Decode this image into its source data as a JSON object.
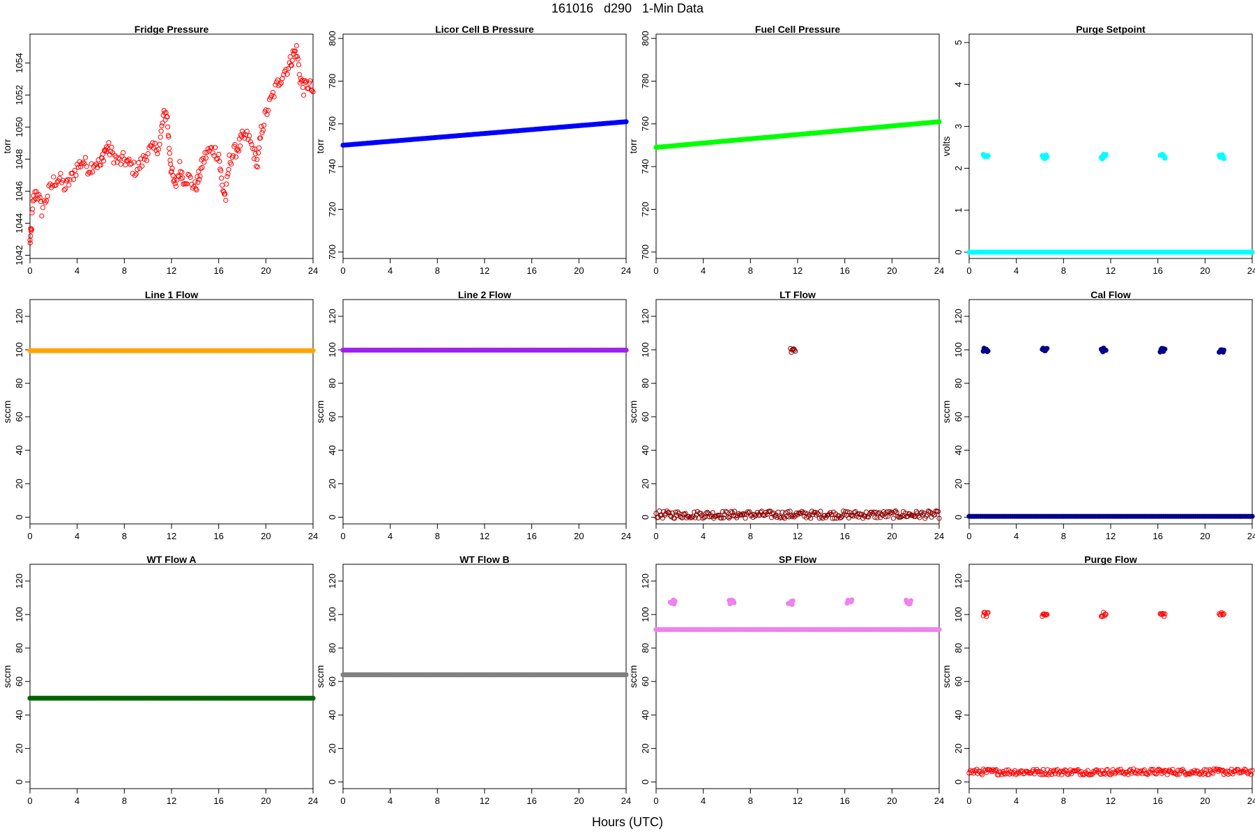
{
  "page": {
    "title": "161016   d290   1-Min Data",
    "xlabel": "Hours (UTC)"
  },
  "chart_data": [
    {
      "type": "scatter",
      "title": "Fridge Pressure",
      "ylabel": "torr",
      "xlim": [
        0,
        24
      ],
      "ylim": [
        1041.8,
        1055.8
      ],
      "xticks": [
        0,
        4,
        8,
        12,
        16,
        20,
        24
      ],
      "yticks": [
        1042,
        1044,
        1046,
        1048,
        1050,
        1052,
        1054
      ],
      "color": "#ff0000",
      "marker": "open",
      "series": [
        {
          "x": [
            0,
            0.1,
            0.3,
            0.6,
            1,
            1.5,
            2,
            2.5,
            3,
            3.5,
            4,
            4.5,
            5,
            5.5,
            6,
            6.3,
            6.6,
            7,
            7.5,
            8,
            8.5,
            9,
            9.5,
            10,
            10.5,
            11,
            11.3,
            11.6,
            11.8,
            12,
            12.3,
            12.7,
            13,
            13.5,
            14,
            14.3,
            14.6,
            15,
            15.5,
            16,
            16.3,
            16.6,
            16.9,
            17.3,
            17.7,
            18,
            18.5,
            19,
            19.3,
            19.6,
            20,
            20.5,
            21,
            21.5,
            22,
            22.3,
            22.6,
            22.9,
            23.2,
            23.6,
            24
          ],
          "y": [
            1042.8,
            1043.5,
            1045.5,
            1046,
            1044.8,
            1045.8,
            1046.6,
            1046.8,
            1046.2,
            1046.8,
            1047.5,
            1047.9,
            1047.4,
            1047.8,
            1047.6,
            1048.5,
            1048.7,
            1048.3,
            1047.8,
            1048,
            1047.6,
            1047.3,
            1047.8,
            1048.5,
            1048.6,
            1048.9,
            1050.6,
            1050.9,
            1048.8,
            1047.2,
            1046.2,
            1047.5,
            1046.8,
            1046.8,
            1046.2,
            1046.8,
            1047.7,
            1048.4,
            1048.6,
            1048.3,
            1046.3,
            1045.6,
            1047.9,
            1048.4,
            1048.8,
            1049.3,
            1049.4,
            1048.4,
            1047.7,
            1049.7,
            1050.8,
            1051.8,
            1052.7,
            1053.4,
            1053.9,
            1054.5,
            1054.8,
            1053.1,
            1052.4,
            1052.7,
            1052.2
          ]
        }
      ]
    },
    {
      "type": "scatter",
      "title": "Licor Cell B Pressure",
      "ylabel": "torr",
      "xlim": [
        0,
        24
      ],
      "ylim": [
        697,
        802
      ],
      "xticks": [
        0,
        4,
        8,
        12,
        16,
        20,
        24
      ],
      "yticks": [
        700,
        720,
        740,
        760,
        780,
        800
      ],
      "color": "#0000ff",
      "marker": "filled",
      "series": [
        {
          "x": [
            0,
            24
          ],
          "y": [
            750,
            761
          ]
        }
      ]
    },
    {
      "type": "scatter",
      "title": "Fuel Cell Pressure",
      "ylabel": "torr",
      "xlim": [
        0,
        24
      ],
      "ylim": [
        697,
        802
      ],
      "xticks": [
        0,
        4,
        8,
        12,
        16,
        20,
        24
      ],
      "yticks": [
        700,
        720,
        740,
        760,
        780,
        800
      ],
      "color": "#00ff00",
      "marker": "filled",
      "series": [
        {
          "x": [
            0,
            24
          ],
          "y": [
            749,
            761
          ]
        }
      ]
    },
    {
      "type": "scatter",
      "title": "Purge Setpoint",
      "ylabel": "volts",
      "xlim": [
        0,
        24
      ],
      "ylim": [
        -0.15,
        5.2
      ],
      "xticks": [
        0,
        4,
        8,
        12,
        16,
        20,
        24
      ],
      "yticks": [
        0,
        1,
        2,
        3,
        4,
        5
      ],
      "color": "#00ffff",
      "marker": "filled",
      "baseline": {
        "x": [
          0,
          24
        ],
        "y": 0
      },
      "clusters": [
        {
          "x": [
            1.2,
            1.6
          ],
          "y": 2.28
        },
        {
          "x": [
            6.2,
            6.6
          ],
          "y": 2.28
        },
        {
          "x": [
            11.2,
            11.6
          ],
          "y": 2.28
        },
        {
          "x": [
            16.2,
            16.6
          ],
          "y": 2.28
        },
        {
          "x": [
            21.2,
            21.6
          ],
          "y": 2.28
        }
      ]
    },
    {
      "type": "scatter",
      "title": "Line 1 Flow",
      "ylabel": "sccm",
      "xlim": [
        0,
        24
      ],
      "ylim": [
        -4,
        130
      ],
      "xticks": [
        0,
        4,
        8,
        12,
        16,
        20,
        24
      ],
      "yticks": [
        0,
        20,
        40,
        60,
        80,
        100,
        120
      ],
      "color": "#ffa500",
      "marker": "filled",
      "series": [
        {
          "x": [
            0,
            24
          ],
          "y": [
            99.5,
            99.5
          ]
        }
      ]
    },
    {
      "type": "scatter",
      "title": "Line 2 Flow",
      "ylabel": "sccm",
      "xlim": [
        0,
        24
      ],
      "ylim": [
        -4,
        130
      ],
      "xticks": [
        0,
        4,
        8,
        12,
        16,
        20,
        24
      ],
      "yticks": [
        0,
        20,
        40,
        60,
        80,
        100,
        120
      ],
      "color": "#a020f0",
      "marker": "filled",
      "series": [
        {
          "x": [
            0,
            24
          ],
          "y": [
            99.8,
            99.8
          ]
        }
      ]
    },
    {
      "type": "scatter",
      "title": "LT Flow",
      "ylabel": "sccm",
      "xlim": [
        0,
        24
      ],
      "ylim": [
        -4,
        130
      ],
      "xticks": [
        0,
        4,
        8,
        12,
        16,
        20,
        24
      ],
      "yticks": [
        0,
        20,
        40,
        60,
        80,
        100,
        120
      ],
      "color": "#8b0000",
      "marker": "open",
      "baseline": {
        "x": [
          0,
          24
        ],
        "y": 1.5,
        "spread": 4.5
      },
      "clusters": [
        {
          "x": [
            11.4,
            11.8
          ],
          "y": 99.5
        }
      ]
    },
    {
      "type": "scatter",
      "title": "Cal Flow",
      "ylabel": "sccm",
      "xlim": [
        0,
        24
      ],
      "ylim": [
        -4,
        130
      ],
      "xticks": [
        0,
        4,
        8,
        12,
        16,
        20,
        24
      ],
      "yticks": [
        0,
        20,
        40,
        60,
        80,
        100,
        120
      ],
      "color": "#00008b",
      "marker": "filled",
      "baseline": {
        "x": [
          0,
          24
        ],
        "y": 0.5
      },
      "clusters": [
        {
          "x": [
            1.2,
            1.6
          ],
          "y": 99.7
        },
        {
          "x": [
            6.2,
            6.6
          ],
          "y": 99.7
        },
        {
          "x": [
            11.2,
            11.6
          ],
          "y": 99.7
        },
        {
          "x": [
            16.2,
            16.6
          ],
          "y": 99.7
        },
        {
          "x": [
            21.2,
            21.6
          ],
          "y": 99.7
        }
      ]
    },
    {
      "type": "scatter",
      "title": "WT Flow A",
      "ylabel": "sccm",
      "xlim": [
        0,
        24
      ],
      "ylim": [
        -4,
        130
      ],
      "xticks": [
        0,
        4,
        8,
        12,
        16,
        20,
        24
      ],
      "yticks": [
        0,
        20,
        40,
        60,
        80,
        100,
        120
      ],
      "color": "#006400",
      "marker": "filled",
      "series": [
        {
          "x": [
            0,
            24
          ],
          "y": [
            50,
            50
          ]
        }
      ]
    },
    {
      "type": "scatter",
      "title": "WT Flow B",
      "ylabel": "sccm",
      "xlim": [
        0,
        24
      ],
      "ylim": [
        -4,
        130
      ],
      "xticks": [
        0,
        4,
        8,
        12,
        16,
        20,
        24
      ],
      "yticks": [
        0,
        20,
        40,
        60,
        80,
        100,
        120
      ],
      "color": "#808080",
      "marker": "filled",
      "series": [
        {
          "x": [
            0,
            24
          ],
          "y": [
            64,
            64
          ]
        }
      ]
    },
    {
      "type": "scatter",
      "title": "SP Flow",
      "ylabel": "sccm",
      "xlim": [
        0,
        24
      ],
      "ylim": [
        -4,
        130
      ],
      "xticks": [
        0,
        4,
        8,
        12,
        16,
        20,
        24
      ],
      "yticks": [
        0,
        20,
        40,
        60,
        80,
        100,
        120
      ],
      "color": "#ee82ee",
      "marker": "filled",
      "baseline": {
        "x": [
          0,
          24
        ],
        "y": 91
      },
      "clusters": [
        {
          "x": [
            1.2,
            1.6
          ],
          "y": 107.5
        },
        {
          "x": [
            6.2,
            6.6
          ],
          "y": 107.5
        },
        {
          "x": [
            11.2,
            11.6
          ],
          "y": 107
        },
        {
          "x": [
            16.2,
            16.6
          ],
          "y": 107.5
        },
        {
          "x": [
            21.2,
            21.6
          ],
          "y": 107.5
        }
      ]
    },
    {
      "type": "scatter",
      "title": "Purge Flow",
      "ylabel": "sccm",
      "xlim": [
        0,
        24
      ],
      "ylim": [
        -4,
        130
      ],
      "xticks": [
        0,
        4,
        8,
        12,
        16,
        20,
        24
      ],
      "yticks": [
        0,
        20,
        40,
        60,
        80,
        100,
        120
      ],
      "color": "#ff0000",
      "marker": "open",
      "baseline": {
        "x": [
          0,
          24
        ],
        "y": 6,
        "spread": 3.5
      },
      "clusters": [
        {
          "x": [
            1.2,
            1.6
          ],
          "y": 100
        },
        {
          "x": [
            6.2,
            6.6
          ],
          "y": 100
        },
        {
          "x": [
            11.2,
            11.6
          ],
          "y": 100
        },
        {
          "x": [
            16.2,
            16.6
          ],
          "y": 100
        },
        {
          "x": [
            21.2,
            21.6
          ],
          "y": 100
        }
      ]
    }
  ]
}
